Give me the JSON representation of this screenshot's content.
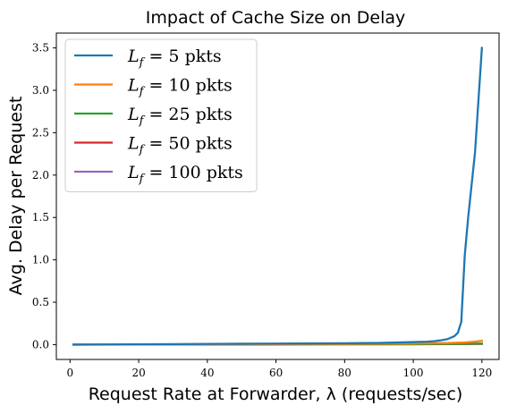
{
  "chart_data": {
    "type": "line",
    "title": "Impact of Cache Size on Delay",
    "xlabel": "Request Rate at Forwarder, λ (requests/sec)",
    "ylabel": "Avg. Delay per Request",
    "xlim": [
      -4,
      125
    ],
    "ylim": [
      -0.175,
      3.675
    ],
    "xticks": [
      0,
      20,
      40,
      60,
      80,
      100,
      120
    ],
    "yticks": [
      0.0,
      0.5,
      1.0,
      1.5,
      2.0,
      2.5,
      3.0,
      3.5
    ],
    "xtick_labels": [
      "0",
      "20",
      "40",
      "60",
      "80",
      "100",
      "120"
    ],
    "ytick_labels": [
      "0.0",
      "0.5",
      "1.0",
      "1.5",
      "2.0",
      "2.5",
      "3.0",
      "3.5"
    ],
    "grid": false,
    "legend_position": "top-left",
    "legend_prefix": "L",
    "legend_subscript": "f",
    "legend_eq": " = ",
    "series": [
      {
        "name": "5 pkts",
        "color": "#1f77b4",
        "x": [
          1,
          10,
          20,
          30,
          40,
          50,
          60,
          70,
          80,
          85,
          90,
          95,
          100,
          104,
          106,
          108,
          110,
          112,
          113,
          114,
          115,
          116,
          118,
          120
        ],
        "y": [
          0.0,
          0.002,
          0.004,
          0.006,
          0.008,
          0.01,
          0.012,
          0.014,
          0.016,
          0.018,
          0.02,
          0.025,
          0.03,
          0.035,
          0.04,
          0.05,
          0.065,
          0.1,
          0.14,
          0.27,
          1.05,
          1.5,
          2.27,
          3.5
        ]
      },
      {
        "name": "10 pkts",
        "color": "#ff7f0e",
        "x": [
          1,
          20,
          40,
          60,
          80,
          100,
          110,
          115,
          118,
          120
        ],
        "y": [
          0.0,
          0.002,
          0.004,
          0.006,
          0.008,
          0.012,
          0.018,
          0.025,
          0.035,
          0.045
        ]
      },
      {
        "name": "25 pkts",
        "color": "#2ca02c",
        "x": [
          1,
          20,
          40,
          60,
          80,
          100,
          110,
          120
        ],
        "y": [
          0.0,
          0.001,
          0.002,
          0.003,
          0.004,
          0.006,
          0.008,
          0.012
        ]
      },
      {
        "name": "50 pkts",
        "color": "#d62728",
        "x": [
          1,
          20,
          40,
          60,
          80,
          100,
          110,
          120
        ],
        "y": [
          0.0,
          0.001,
          0.002,
          0.003,
          0.004,
          0.005,
          0.007,
          0.01
        ]
      },
      {
        "name": "100 pkts",
        "color": "#9467bd",
        "x": [
          1,
          20,
          40,
          60,
          80,
          100,
          110,
          120
        ],
        "y": [
          0.0,
          0.001,
          0.002,
          0.003,
          0.004,
          0.005,
          0.006,
          0.008
        ]
      }
    ]
  }
}
